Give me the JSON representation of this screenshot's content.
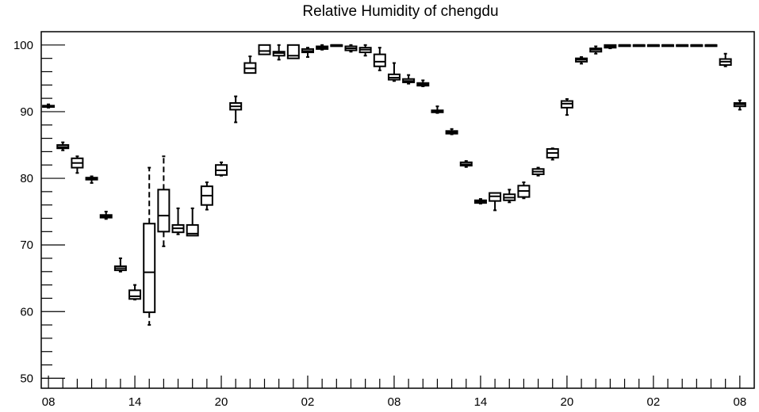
{
  "chart_data": {
    "type": "boxplot",
    "title": "Relative Humidity of chengdu",
    "xlabel": "",
    "ylabel": "",
    "ylim": [
      48.5,
      102
    ],
    "y_ticks": [
      50,
      60,
      70,
      80,
      90,
      100
    ],
    "x_tick_labels": [
      "08",
      "14",
      "20",
      "02",
      "08",
      "14",
      "20",
      "02",
      "08"
    ],
    "x_tick_hours": [
      0,
      6,
      12,
      18,
      24,
      30,
      36,
      42,
      48
    ],
    "x_range_hours": [
      -0.5,
      49
    ],
    "grid": false,
    "legend": "none",
    "stroke_color": "#000000",
    "boxes": [
      {
        "h": 0,
        "min": 90.6,
        "q1": 90.7,
        "median": 90.8,
        "q3": 90.9,
        "max": 91.1
      },
      {
        "h": 1,
        "min": 84.2,
        "q1": 84.5,
        "median": 84.7,
        "q3": 85.0,
        "max": 85.4
      },
      {
        "h": 2,
        "min": 80.8,
        "q1": 81.6,
        "median": 82.3,
        "q3": 83.0,
        "max": 83.3
      },
      {
        "h": 3,
        "min": 79.3,
        "q1": 79.8,
        "median": 80.0,
        "q3": 80.1,
        "max": 80.3
      },
      {
        "h": 4,
        "min": 73.9,
        "q1": 74.1,
        "median": 74.3,
        "q3": 74.5,
        "max": 75.0
      },
      {
        "h": 5,
        "min": 66.0,
        "q1": 66.2,
        "median": 66.5,
        "q3": 66.8,
        "max": 68.0
      },
      {
        "h": 6,
        "min": 61.8,
        "q1": 61.9,
        "median": 62.3,
        "q3": 63.2,
        "max": 64.0
      },
      {
        "h": 7,
        "min": 58.0,
        "q1": 59.9,
        "median": 65.9,
        "q3": 73.2,
        "max": 81.6
      },
      {
        "h": 8,
        "min": 69.8,
        "q1": 72.0,
        "median": 74.4,
        "q3": 78.3,
        "max": 83.3
      },
      {
        "h": 9,
        "min": 71.6,
        "q1": 71.9,
        "median": 72.5,
        "q3": 73.0,
        "max": 75.5
      },
      {
        "h": 10,
        "min": 71.4,
        "q1": 71.4,
        "median": 71.7,
        "q3": 73.0,
        "max": 75.5
      },
      {
        "h": 11,
        "min": 75.3,
        "q1": 76.0,
        "median": 77.4,
        "q3": 78.8,
        "max": 79.4
      },
      {
        "h": 12,
        "min": 80.4,
        "q1": 80.5,
        "median": 81.2,
        "q3": 82.0,
        "max": 82.4
      },
      {
        "h": 13,
        "min": 88.4,
        "q1": 90.3,
        "median": 90.8,
        "q3": 91.3,
        "max": 92.3
      },
      {
        "h": 14,
        "min": 95.8,
        "q1": 95.8,
        "median": 96.5,
        "q3": 97.3,
        "max": 98.3
      },
      {
        "h": 15,
        "min": 98.6,
        "q1": 98.6,
        "median": 99.1,
        "q3": 100.0,
        "max": 100.0
      },
      {
        "h": 16,
        "min": 97.8,
        "q1": 98.4,
        "median": 98.8,
        "q3": 99.0,
        "max": 100.0
      },
      {
        "h": 17,
        "min": 98.0,
        "q1": 98.0,
        "median": 98.4,
        "q3": 100.0,
        "max": 100.0
      },
      {
        "h": 18,
        "min": 98.2,
        "q1": 98.9,
        "median": 99.1,
        "q3": 99.4,
        "max": 99.6
      },
      {
        "h": 19,
        "min": 99.3,
        "q1": 99.4,
        "median": 99.6,
        "q3": 99.8,
        "max": 100.0
      },
      {
        "h": 20,
        "min": 100.0,
        "q1": 100.0,
        "median": 100.0,
        "q3": 100.0,
        "max": 100.0
      },
      {
        "h": 21,
        "min": 99.0,
        "q1": 99.2,
        "median": 99.5,
        "q3": 99.8,
        "max": 100.0
      },
      {
        "h": 22,
        "min": 98.4,
        "q1": 98.9,
        "median": 99.3,
        "q3": 99.6,
        "max": 100.0
      },
      {
        "h": 23,
        "min": 96.2,
        "q1": 96.8,
        "median": 97.5,
        "q3": 98.6,
        "max": 99.6
      },
      {
        "h": 24,
        "min": 94.6,
        "q1": 94.8,
        "median": 95.1,
        "q3": 95.6,
        "max": 97.3
      },
      {
        "h": 25,
        "min": 94.2,
        "q1": 94.4,
        "median": 94.6,
        "q3": 94.9,
        "max": 95.5
      },
      {
        "h": 26,
        "min": 93.8,
        "q1": 93.9,
        "median": 94.1,
        "q3": 94.3,
        "max": 94.7
      },
      {
        "h": 27,
        "min": 89.8,
        "q1": 89.9,
        "median": 90.0,
        "q3": 90.2,
        "max": 90.8
      },
      {
        "h": 28,
        "min": 86.6,
        "q1": 86.7,
        "median": 86.9,
        "q3": 87.1,
        "max": 87.4
      },
      {
        "h": 29,
        "min": 81.7,
        "q1": 81.9,
        "median": 82.1,
        "q3": 82.4,
        "max": 82.6
      },
      {
        "h": 30,
        "min": 76.2,
        "q1": 76.3,
        "median": 76.5,
        "q3": 76.7,
        "max": 76.9
      },
      {
        "h": 31,
        "min": 75.2,
        "q1": 76.6,
        "median": 77.3,
        "q3": 77.8,
        "max": 77.8
      },
      {
        "h": 32,
        "min": 76.4,
        "q1": 76.7,
        "median": 77.1,
        "q3": 77.6,
        "max": 78.3
      },
      {
        "h": 33,
        "min": 77.0,
        "q1": 77.2,
        "median": 78.1,
        "q3": 78.9,
        "max": 79.4
      },
      {
        "h": 34,
        "min": 80.4,
        "q1": 80.6,
        "median": 81.0,
        "q3": 81.4,
        "max": 81.6
      },
      {
        "h": 35,
        "min": 82.8,
        "q1": 83.1,
        "median": 83.8,
        "q3": 84.4,
        "max": 84.5
      },
      {
        "h": 36,
        "min": 89.5,
        "q1": 90.6,
        "median": 91.2,
        "q3": 91.6,
        "max": 91.9
      },
      {
        "h": 37,
        "min": 97.2,
        "q1": 97.5,
        "median": 97.8,
        "q3": 98.0,
        "max": 98.2
      },
      {
        "h": 38,
        "min": 98.7,
        "q1": 99.0,
        "median": 99.3,
        "q3": 99.5,
        "max": 99.8
      },
      {
        "h": 39,
        "min": 99.5,
        "q1": 99.6,
        "median": 99.8,
        "q3": 100.0,
        "max": 100.0
      },
      {
        "h": 40,
        "min": 100.0,
        "q1": 100.0,
        "median": 100.0,
        "q3": 100.0,
        "max": 100.0
      },
      {
        "h": 41,
        "min": 100.0,
        "q1": 100.0,
        "median": 100.0,
        "q3": 100.0,
        "max": 100.0
      },
      {
        "h": 42,
        "min": 100.0,
        "q1": 100.0,
        "median": 100.0,
        "q3": 100.0,
        "max": 100.0
      },
      {
        "h": 43,
        "min": 100.0,
        "q1": 100.0,
        "median": 100.0,
        "q3": 100.0,
        "max": 100.0
      },
      {
        "h": 44,
        "min": 100.0,
        "q1": 100.0,
        "median": 100.0,
        "q3": 100.0,
        "max": 100.0
      },
      {
        "h": 45,
        "min": 100.0,
        "q1": 100.0,
        "median": 100.0,
        "q3": 100.0,
        "max": 100.0
      },
      {
        "h": 46,
        "min": 100.0,
        "q1": 100.0,
        "median": 100.0,
        "q3": 100.0,
        "max": 100.0
      },
      {
        "h": 47,
        "min": 96.8,
        "q1": 97.0,
        "median": 97.5,
        "q3": 97.9,
        "max": 98.7
      },
      {
        "h": 48,
        "min": 90.3,
        "q1": 90.8,
        "median": 91.1,
        "q3": 91.3,
        "max": 91.7
      }
    ]
  }
}
